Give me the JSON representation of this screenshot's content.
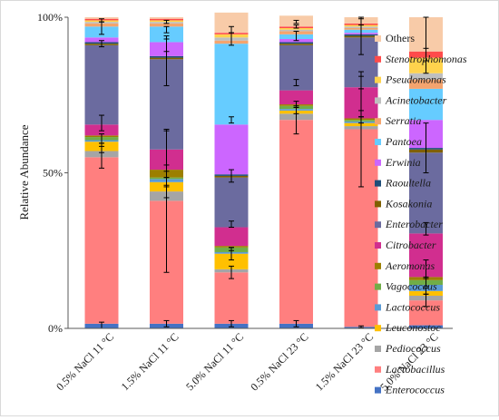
{
  "chart_data": {
    "type": "bar",
    "stacked": true,
    "percent": true,
    "title": "",
    "xlabel": "",
    "ylabel": "Relative Abundance",
    "ylim": [
      0,
      100
    ],
    "yticks": [
      {
        "value": 0,
        "label": "0%"
      },
      {
        "value": 50,
        "label": "50%"
      },
      {
        "value": 100,
        "label": "100%"
      }
    ],
    "gridlines": false,
    "legend_position": "right",
    "categories": [
      "0.5% NaCl 11 °C",
      "1.5% NaCl 11 °C",
      "5.0% NaCl 11 °C",
      "0.5% NaCl 23 °C",
      "1.5% NaCl 23 °C",
      "5.0% NaCl 23 °C"
    ],
    "series": [
      {
        "name": "Enterococcus",
        "italic": true,
        "color": "#4472c4",
        "values": [
          1.5,
          1.5,
          1.5,
          1.5,
          0.5,
          1.0
        ]
      },
      {
        "name": "Lactobacillus",
        "italic": true,
        "color": "#ff7f7f",
        "values": [
          53.5,
          39.5,
          16.5,
          65.5,
          63.5,
          8.0
        ]
      },
      {
        "name": "Pediococcus",
        "italic": true,
        "color": "#a5a5a5",
        "values": [
          2.0,
          3.0,
          1.0,
          2.0,
          1.0,
          1.5
        ]
      },
      {
        "name": "Leuconostoc",
        "italic": true,
        "color": "#ffc000",
        "values": [
          3.0,
          3.0,
          5.0,
          1.0,
          1.0,
          1.5
        ]
      },
      {
        "name": "Lactococcus",
        "italic": true,
        "color": "#5b9bd5",
        "values": [
          0.5,
          1.0,
          0.5,
          0.5,
          0.5,
          2.0
        ]
      },
      {
        "name": "Vagococcus",
        "italic": true,
        "color": "#70ad47",
        "values": [
          1.0,
          0.5,
          1.5,
          1.0,
          0.5,
          1.5
        ]
      },
      {
        "name": "Aeromonas",
        "italic": true,
        "color": "#9c7f00",
        "values": [
          0.5,
          2.5,
          0.5,
          0.5,
          0.5,
          1.0
        ]
      },
      {
        "name": "Citrobacter",
        "italic": true,
        "color": "#d12e8f",
        "values": [
          3.5,
          6.5,
          6.0,
          4.5,
          10.0,
          14.0
        ]
      },
      {
        "name": "Enterobacter",
        "italic": true,
        "color": "#6b6b9f",
        "values": [
          25.5,
          29.0,
          16.0,
          14.5,
          16.0,
          26.0
        ]
      },
      {
        "name": "Kosakonia",
        "italic": true,
        "color": "#7f6000",
        "values": [
          0.5,
          0.5,
          0.5,
          0.5,
          0.5,
          1.0
        ]
      },
      {
        "name": "Raoultella",
        "italic": true,
        "color": "#1f4e79",
        "values": [
          0.5,
          0.5,
          0.5,
          0.5,
          0.5,
          0.5
        ]
      },
      {
        "name": "Erwinia",
        "italic": true,
        "color": "#cc66ff",
        "values": [
          1.5,
          4.5,
          16.0,
          1.0,
          0.5,
          9.0
        ]
      },
      {
        "name": "Pantoea",
        "italic": true,
        "color": "#66ccff",
        "values": [
          3.5,
          5.0,
          26.0,
          1.5,
          1.0,
          10.0
        ]
      },
      {
        "name": "Serratia",
        "italic": true,
        "color": "#f4a46e",
        "values": [
          1.0,
          1.0,
          1.0,
          1.0,
          0.5,
          3.0
        ]
      },
      {
        "name": "Acinetobacter",
        "italic": true,
        "color": "#bfbfbf",
        "values": [
          0.5,
          0.5,
          1.0,
          0.5,
          0.5,
          2.0
        ]
      },
      {
        "name": "Pseudomonas",
        "italic": true,
        "color": "#ffd34d",
        "values": [
          0.5,
          0.5,
          1.0,
          0.5,
          0.5,
          5.0
        ]
      },
      {
        "name": "Stenotrophomonas",
        "italic": true,
        "color": "#ff4b4b",
        "values": [
          0.5,
          0.5,
          0.5,
          0.5,
          0.5,
          2.0
        ]
      },
      {
        "name": "Others",
        "italic": false,
        "color": "#f8cba8",
        "values": [
          0.5,
          0.5,
          6.5,
          3.5,
          2.0,
          11.0
        ]
      }
    ],
    "error_bars": [
      {
        "category": "0.5% NaCl 11 °C",
        "points": [
          {
            "y": 1,
            "err": 1
          },
          {
            "y": 55,
            "err": 3.5
          },
          {
            "y": 58,
            "err": 1.5
          },
          {
            "y": 61,
            "err": 1.5
          },
          {
            "y": 66,
            "err": 2.5
          },
          {
            "y": 91.5,
            "err": 1
          },
          {
            "y": 96.5,
            "err": 2
          },
          {
            "y": 99,
            "err": 0.5
          }
        ]
      },
      {
        "category": "1.5% NaCl 11 °C",
        "points": [
          {
            "y": 1.5,
            "err": 1
          },
          {
            "y": 41,
            "err": 23
          },
          {
            "y": 44,
            "err": 2
          },
          {
            "y": 47,
            "err": 1.5
          },
          {
            "y": 50.5,
            "err": 2
          },
          {
            "y": 57,
            "err": 6.5
          },
          {
            "y": 86,
            "err": 8
          },
          {
            "y": 91,
            "err": 2
          },
          {
            "y": 96,
            "err": 1
          },
          {
            "y": 98.5,
            "err": 0.5
          }
        ]
      },
      {
        "category": "5.0% NaCl 11 °C",
        "points": [
          {
            "y": 1.5,
            "err": 1
          },
          {
            "y": 18,
            "err": 2
          },
          {
            "y": 24,
            "err": 2
          },
          {
            "y": 25.5,
            "err": 0.5
          },
          {
            "y": 33.5,
            "err": 1
          },
          {
            "y": 49,
            "err": 2
          },
          {
            "y": 67,
            "err": 1
          },
          {
            "y": 93,
            "err": 2
          },
          {
            "y": 96,
            "err": 1
          }
        ]
      },
      {
        "category": "0.5% NaCl 23 °C",
        "points": [
          {
            "y": 1.5,
            "err": 1
          },
          {
            "y": 67,
            "err": 4.5
          },
          {
            "y": 70,
            "err": 1
          },
          {
            "y": 72,
            "err": 1
          },
          {
            "y": 79,
            "err": 1
          },
          {
            "y": 94,
            "err": 1.5
          },
          {
            "y": 97,
            "err": 0.5
          },
          {
            "y": 98.5,
            "err": 0.5
          }
        ]
      },
      {
        "category": "1.5% NaCl 23 °C",
        "points": [
          {
            "y": 0.5,
            "err": 0.3
          },
          {
            "y": 64,
            "err": 18.5
          },
          {
            "y": 67,
            "err": 1
          },
          {
            "y": 69,
            "err": 1
          },
          {
            "y": 79,
            "err": 2
          },
          {
            "y": 94,
            "err": 6
          },
          {
            "y": 98.5,
            "err": 1
          }
        ]
      },
      {
        "category": "5.0% NaCl 23 °C",
        "points": [
          {
            "y": 9,
            "err": 2
          },
          {
            "y": 12,
            "err": 1
          },
          {
            "y": 15,
            "err": 1.5
          },
          {
            "y": 19,
            "err": 3
          },
          {
            "y": 32,
            "err": 2
          },
          {
            "y": 58,
            "err": 8
          },
          {
            "y": 86,
            "err": 4
          },
          {
            "y": 93,
            "err": 7
          }
        ]
      }
    ]
  }
}
